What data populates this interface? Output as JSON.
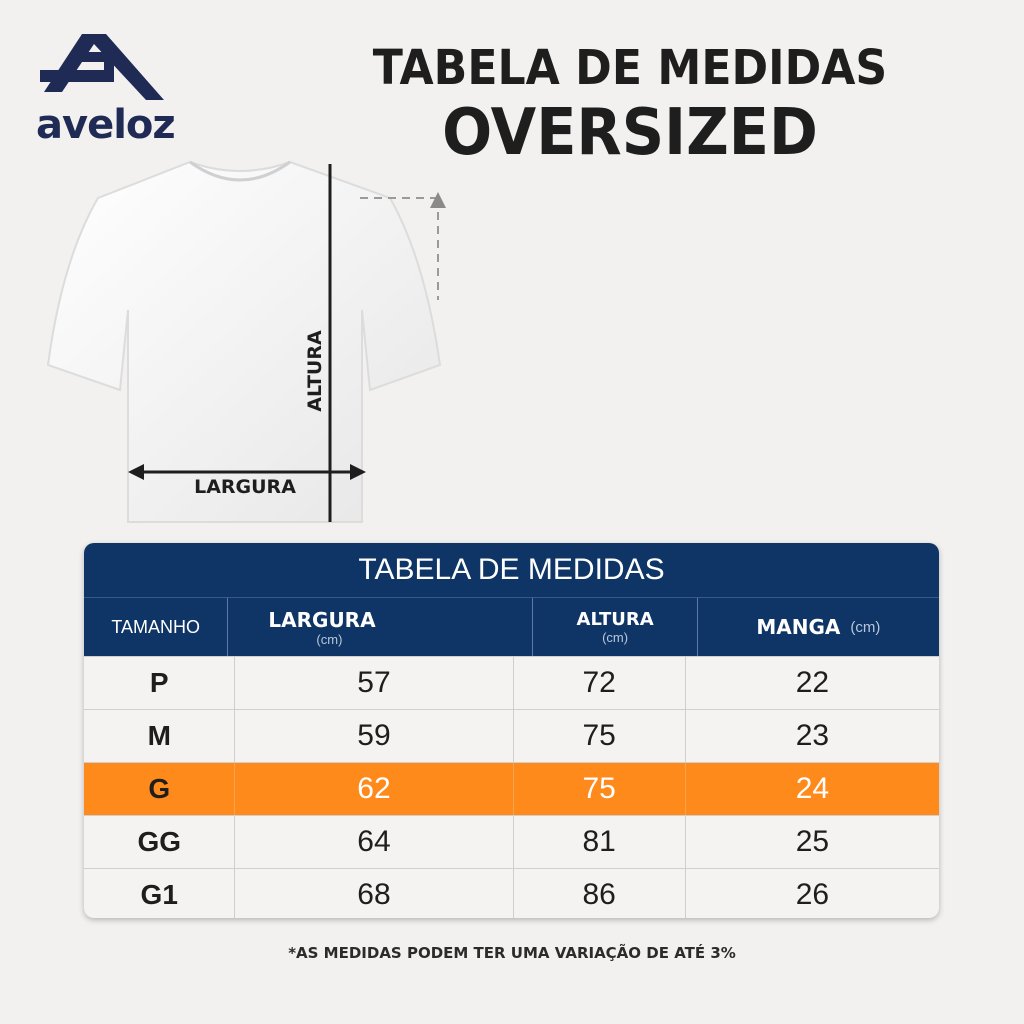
{
  "brand": {
    "name": "aveloz",
    "color": "#1f2a55"
  },
  "header": {
    "title_line1": "TABELA DE MEDIDAS",
    "title_line2": "OVERSIZED"
  },
  "diagram": {
    "label_width": "LARGURA",
    "label_height": "ALTURA",
    "shirt_icon": "tshirt-icon"
  },
  "table": {
    "title": "TABELA DE MEDIDAS",
    "header_color": "#0f3566",
    "highlight_color": "#ff8a1c",
    "columns": [
      {
        "label": "TAMANHO",
        "unit": ""
      },
      {
        "label": "LARGURA",
        "unit": "(cm)"
      },
      {
        "label": "ALTURA",
        "unit": "(cm)"
      },
      {
        "label": "MANGA",
        "unit": "(cm)"
      }
    ],
    "rows": [
      {
        "size": "P",
        "largura": "57",
        "altura": "72",
        "manga": "22"
      },
      {
        "size": "M",
        "largura": "59",
        "altura": "75",
        "manga": "23"
      },
      {
        "size": "G",
        "largura": "62",
        "altura": "75",
        "manga": "24",
        "highlighted": true
      },
      {
        "size": "GG",
        "largura": "64",
        "altura": "81",
        "manga": "25"
      },
      {
        "size": "G1",
        "largura": "68",
        "altura": "86",
        "manga": "26"
      }
    ]
  },
  "footnote": "*AS MEDIDAS PODEM TER UMA VARIAÇÃO DE ATÉ 3%"
}
